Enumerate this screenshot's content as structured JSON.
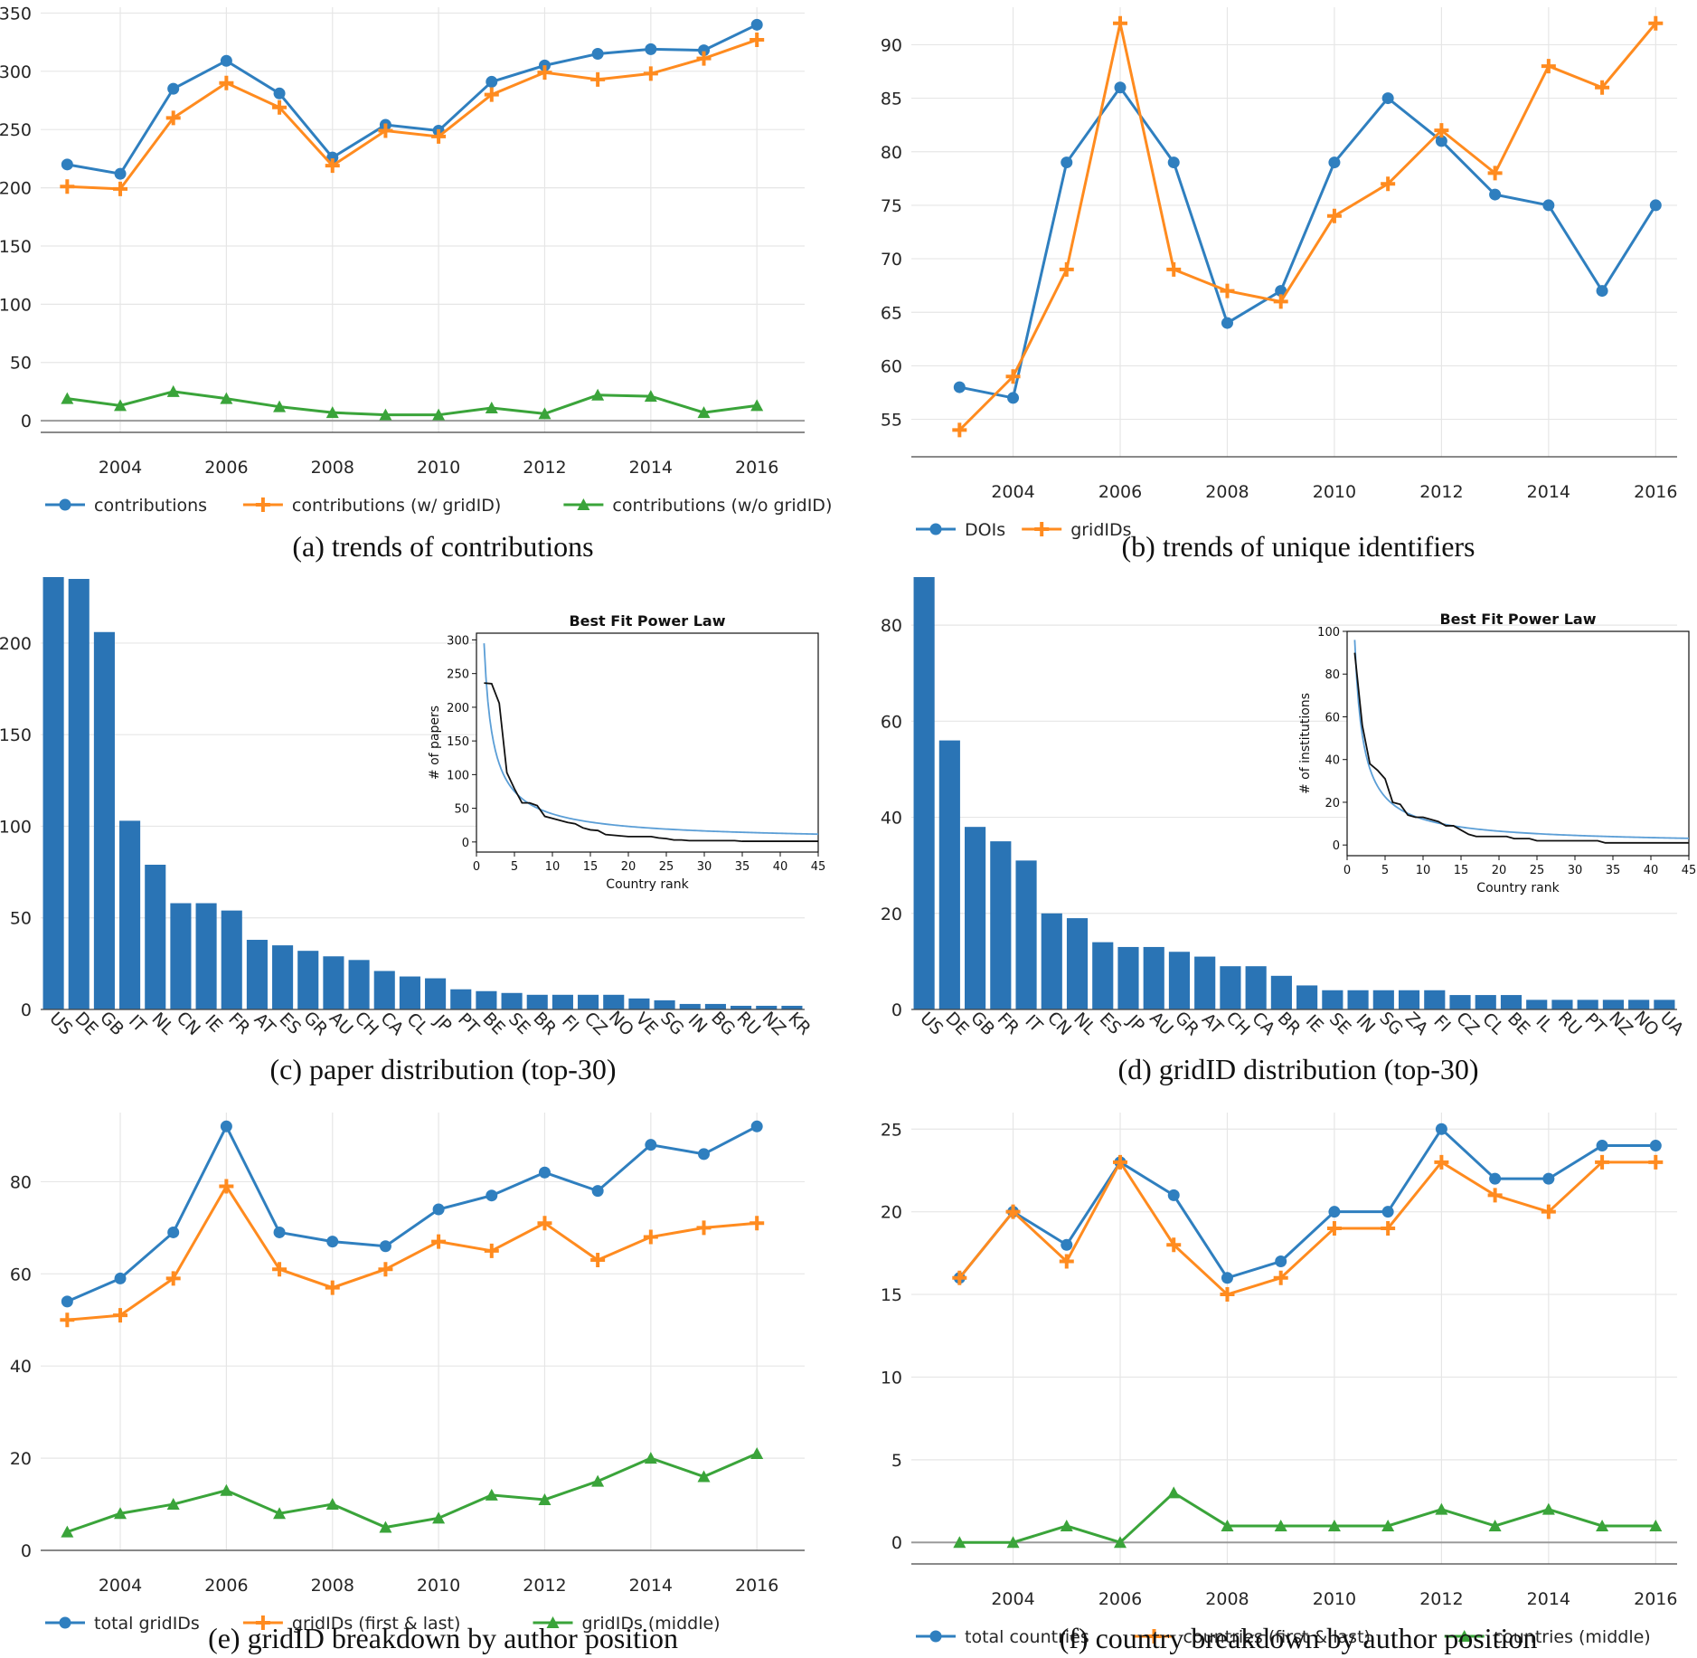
{
  "colors": {
    "blue": "#2f7fbf",
    "orange": "#ff8b1f",
    "green": "#3aa43a",
    "grid": "#e6e6e6",
    "axis": "#9a9a9a",
    "bar": "#2a74b5",
    "fit_line": "#5b9ed6",
    "data_line": "#111111"
  },
  "captions": {
    "a": "(a) trends of contributions",
    "b": "(b) trends of unique identifiers",
    "c": "(c) paper distribution (top-30)",
    "d": "(d) gridID distribution (top-30)",
    "e": "(e) gridID breakdown by author position",
    "f": "(f) country breakdown by author position"
  },
  "chart_data": [
    {
      "id": "a",
      "type": "line",
      "x": [
        2003,
        2004,
        2005,
        2006,
        2007,
        2008,
        2009,
        2010,
        2011,
        2012,
        2013,
        2014,
        2015,
        2016
      ],
      "xlim": [
        2002.5,
        2016.9
      ],
      "xticks": [
        2004,
        2006,
        2008,
        2010,
        2012,
        2014,
        2016
      ],
      "ylim": [
        -10,
        355
      ],
      "yticks": [
        0,
        50,
        100,
        150,
        200,
        250,
        300,
        350
      ],
      "zero_line": true,
      "series": [
        {
          "name": "contributions",
          "color": "#2f7fbf",
          "marker": "circle",
          "values": [
            220,
            212,
            285,
            309,
            281,
            226,
            254,
            249,
            291,
            305,
            315,
            319,
            318,
            340
          ]
        },
        {
          "name": "contributions (w/ gridID)",
          "color": "#ff8b1f",
          "marker": "plus",
          "values": [
            201,
            199,
            260,
            290,
            269,
            219,
            249,
            244,
            280,
            299,
            293,
            298,
            311,
            327
          ]
        },
        {
          "name": "contributions (w/o gridID)",
          "color": "#3aa43a",
          "marker": "triangle",
          "values": [
            19,
            13,
            25,
            19,
            12,
            7,
            5,
            5,
            11,
            6,
            22,
            21,
            7,
            13
          ]
        }
      ]
    },
    {
      "id": "b",
      "type": "line",
      "x": [
        2003,
        2004,
        2005,
        2006,
        2007,
        2008,
        2009,
        2010,
        2011,
        2012,
        2013,
        2014,
        2015,
        2016
      ],
      "xlim": [
        2002.1,
        2016.4
      ],
      "xticks": [
        2004,
        2006,
        2008,
        2010,
        2012,
        2014,
        2016
      ],
      "ylim": [
        51.5,
        93.5
      ],
      "yticks": [
        55,
        60,
        65,
        70,
        75,
        80,
        85,
        90
      ],
      "zero_line": false,
      "series": [
        {
          "name": "DOIs",
          "color": "#2f7fbf",
          "marker": "circle",
          "values": [
            58,
            57,
            79,
            86,
            79,
            64,
            67,
            79,
            85,
            81,
            76,
            75,
            67,
            75
          ]
        },
        {
          "name": "gridIDs",
          "color": "#ff8b1f",
          "marker": "plus",
          "values": [
            54,
            59,
            69,
            92,
            69,
            67,
            66,
            74,
            77,
            82,
            78,
            88,
            86,
            92
          ]
        }
      ]
    },
    {
      "id": "c",
      "type": "bar",
      "categories": [
        "US",
        "DE",
        "GB",
        "IT",
        "NL",
        "CN",
        "IE",
        "FR",
        "AT",
        "ES",
        "GR",
        "AU",
        "CH",
        "CA",
        "CL",
        "JP",
        "PT",
        "BE",
        "SE",
        "BR",
        "FI",
        "CZ",
        "NO",
        "VE",
        "SG",
        "IN",
        "BG",
        "RU",
        "NZ",
        "KR"
      ],
      "values": [
        236,
        235,
        206,
        103,
        79,
        58,
        58,
        54,
        38,
        35,
        32,
        29,
        27,
        21,
        18,
        17,
        11,
        10,
        9,
        8,
        8,
        8,
        8,
        6,
        5,
        3,
        3,
        2,
        2,
        2
      ],
      "ylim": [
        0,
        236
      ],
      "yticks": [
        0,
        50,
        100,
        150,
        200
      ],
      "inset": {
        "title": "Best Fit Power Law",
        "xlabel": "Country rank",
        "ylabel": "# of papers",
        "xlim": [
          0,
          45
        ],
        "ylim": [
          -15,
          310
        ],
        "xticks": [
          0,
          5,
          10,
          15,
          20,
          25,
          30,
          35,
          40,
          45
        ],
        "yticks": [
          0,
          50,
          100,
          150,
          200,
          250,
          300
        ],
        "fit_a": 295,
        "fit_b": 0.85,
        "data": [
          236,
          235,
          206,
          103,
          79,
          58,
          58,
          54,
          38,
          35,
          32,
          29,
          27,
          21,
          18,
          17,
          11,
          10,
          9,
          8,
          8,
          8,
          8,
          6,
          5,
          3,
          3,
          2,
          2,
          2,
          2,
          2,
          2,
          2,
          1,
          1,
          1,
          1,
          1,
          1,
          1,
          1,
          1,
          1,
          1
        ]
      }
    },
    {
      "id": "d",
      "type": "bar",
      "categories": [
        "US",
        "DE",
        "GB",
        "FR",
        "IT",
        "CN",
        "NL",
        "ES",
        "JP",
        "AU",
        "GR",
        "AT",
        "CH",
        "CA",
        "BR",
        "IE",
        "SE",
        "IN",
        "SG",
        "ZA",
        "FI",
        "CZ",
        "CL",
        "BE",
        "IL",
        "RU",
        "PT",
        "NZ",
        "NO",
        "UA"
      ],
      "values": [
        90,
        56,
        38,
        35,
        31,
        20,
        19,
        14,
        13,
        13,
        12,
        11,
        9,
        9,
        7,
        5,
        4,
        4,
        4,
        4,
        4,
        3,
        3,
        3,
        2,
        2,
        2,
        2,
        2,
        2
      ],
      "ylim": [
        0,
        90
      ],
      "yticks": [
        0,
        20,
        40,
        60,
        80
      ],
      "inset": {
        "title": "Best Fit Power Law",
        "xlabel": "Country rank",
        "ylabel": "# of institutions",
        "xlim": [
          0,
          45
        ],
        "ylim": [
          -5,
          100
        ],
        "xticks": [
          0,
          5,
          10,
          15,
          20,
          25,
          30,
          35,
          40,
          45
        ],
        "yticks": [
          0,
          20,
          40,
          60,
          80,
          100
        ],
        "fit_a": 96,
        "fit_b": 0.9,
        "data": [
          90,
          56,
          38,
          35,
          31,
          20,
          19,
          14,
          13,
          13,
          12,
          11,
          9,
          9,
          7,
          5,
          4,
          4,
          4,
          4,
          4,
          3,
          3,
          3,
          2,
          2,
          2,
          2,
          2,
          2,
          2,
          2,
          2,
          1,
          1,
          1,
          1,
          1,
          1,
          1,
          1,
          1,
          1,
          1,
          1
        ]
      }
    },
    {
      "id": "e",
      "type": "line",
      "x": [
        2003,
        2004,
        2005,
        2006,
        2007,
        2008,
        2009,
        2010,
        2011,
        2012,
        2013,
        2014,
        2015,
        2016
      ],
      "xlim": [
        2002.5,
        2016.9
      ],
      "xticks": [
        2004,
        2006,
        2008,
        2010,
        2012,
        2014,
        2016
      ],
      "ylim": [
        0,
        95
      ],
      "yticks": [
        0,
        20,
        40,
        60,
        80
      ],
      "zero_line": false,
      "series": [
        {
          "name": "total gridIDs",
          "color": "#2f7fbf",
          "marker": "circle",
          "values": [
            54,
            59,
            69,
            92,
            69,
            67,
            66,
            74,
            77,
            82,
            78,
            88,
            86,
            92
          ]
        },
        {
          "name": "gridIDs (first & last)",
          "color": "#ff8b1f",
          "marker": "plus",
          "values": [
            50,
            51,
            59,
            79,
            61,
            57,
            61,
            67,
            65,
            71,
            63,
            68,
            70,
            71
          ]
        },
        {
          "name": "gridIDs (middle)",
          "color": "#3aa43a",
          "marker": "triangle",
          "values": [
            4,
            8,
            10,
            13,
            8,
            10,
            5,
            7,
            12,
            11,
            15,
            20,
            16,
            21
          ]
        }
      ]
    },
    {
      "id": "f",
      "type": "line",
      "x": [
        2003,
        2004,
        2005,
        2006,
        2007,
        2008,
        2009,
        2010,
        2011,
        2012,
        2013,
        2014,
        2015,
        2016
      ],
      "xlim": [
        2002.1,
        2016.4
      ],
      "xticks": [
        2004,
        2006,
        2008,
        2010,
        2012,
        2014,
        2016
      ],
      "ylim": [
        -1.3,
        26
      ],
      "yticks": [
        0,
        5,
        10,
        15,
        20,
        25
      ],
      "zero_line": true,
      "series": [
        {
          "name": "total countries",
          "color": "#2f7fbf",
          "marker": "circle",
          "values": [
            16,
            20,
            18,
            23,
            21,
            16,
            17,
            20,
            20,
            25,
            22,
            22,
            24,
            24
          ]
        },
        {
          "name": "countries (first & last)",
          "color": "#ff8b1f",
          "marker": "plus",
          "values": [
            16,
            20,
            17,
            23,
            18,
            15,
            16,
            19,
            19,
            23,
            21,
            20,
            23,
            23
          ]
        },
        {
          "name": "countries (middle)",
          "color": "#3aa43a",
          "marker": "triangle",
          "values": [
            0,
            0,
            1,
            0,
            3,
            1,
            1,
            1,
            1,
            2,
            1,
            2,
            1,
            1
          ]
        }
      ]
    }
  ]
}
